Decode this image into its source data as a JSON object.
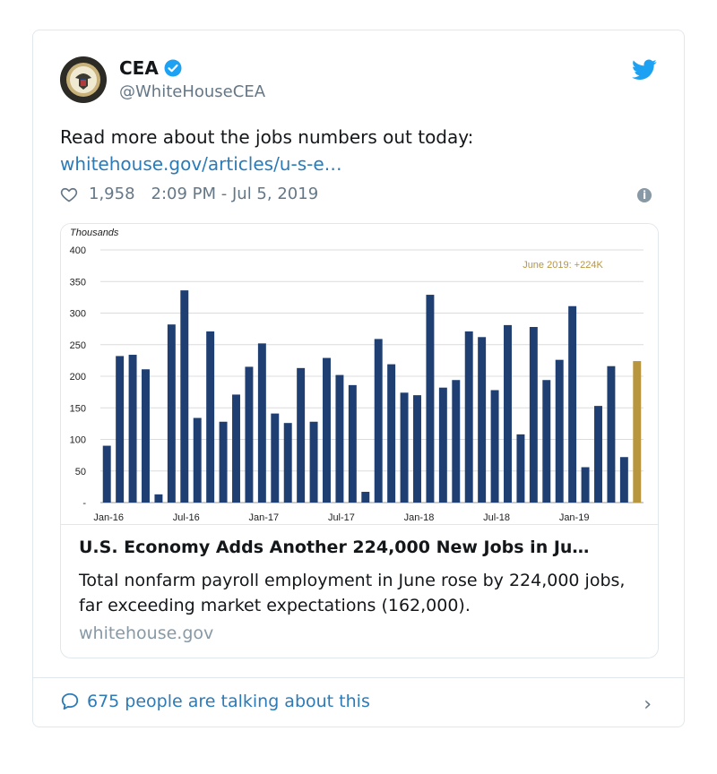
{
  "account": {
    "name": "CEA",
    "handle": "@WhiteHouseCEA"
  },
  "tweet": {
    "text": "Read more about the jobs numbers out today:",
    "link": "whitehouse.gov/articles/u-s-e…",
    "likes": "1,958",
    "timestamp": "2:09 PM - Jul 5, 2019"
  },
  "card": {
    "title": "U.S. Economy Adds Another 224,000 New Jobs in Ju…",
    "description": "Total nonfarm payroll employment in June rose by 224,000 jobs, far exceeding market expectations (162,000).",
    "domain": "whitehouse.gov"
  },
  "footer": {
    "talking": "675 people are talking about this"
  },
  "colors": {
    "bar": "#1f3f73",
    "highlight": "#b8963e",
    "link": "#2b7bb9"
  },
  "chart_data": {
    "type": "bar",
    "ylabel": "Thousands",
    "ylim": [
      0,
      400
    ],
    "yticks": [
      "-",
      "50",
      "100",
      "150",
      "200",
      "250",
      "300",
      "350",
      "400"
    ],
    "xtick_labels": [
      "Jan-16",
      "Jul-16",
      "Jan-17",
      "Jul-17",
      "Jan-18",
      "Jul-18",
      "Jan-19"
    ],
    "annotation": "June 2019: +224K",
    "values": [
      90,
      232,
      234,
      211,
      13,
      282,
      336,
      134,
      271,
      128,
      171,
      215,
      252,
      141,
      126,
      213,
      128,
      229,
      202,
      186,
      17,
      259,
      219,
      174,
      170,
      329,
      182,
      194,
      271,
      262,
      178,
      281,
      108,
      278,
      194,
      226,
      311,
      56,
      153,
      216,
      72,
      224
    ],
    "highlight_last": true
  }
}
